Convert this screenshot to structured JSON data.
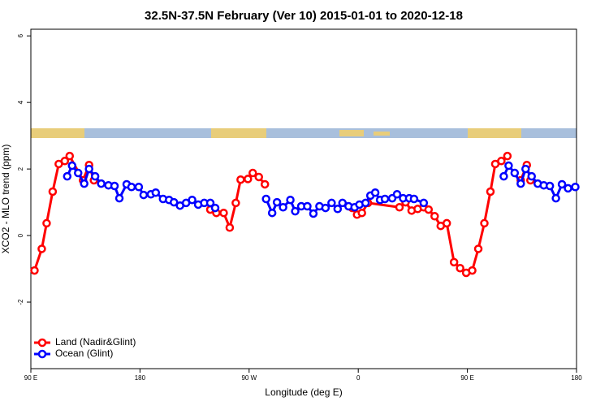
{
  "chart_data": {
    "type": "line",
    "title": "32.5N-37.5N February (Ver 10)   2015-01-01 to 2020-12-18",
    "x_label": "Longitude (deg E)",
    "y_label": "XCO2 - MLO trend (ppm)",
    "xlim": [
      90,
      540
    ],
    "xticks": [
      {
        "value": 90,
        "label": "90 E"
      },
      180,
      {
        "value": 270,
        "label": "90 W"
      },
      {
        "value": 360,
        "label": "0"
      },
      {
        "value": 450,
        "label": "90 E"
      },
      {
        "value": 540,
        "label": "180"
      }
    ],
    "ylim": [
      -4,
      6.2
    ],
    "yticks": [
      -2,
      0,
      2,
      4,
      6
    ],
    "legend": "bottom-left",
    "series": [
      {
        "name": "Land (Nadir&Glint)",
        "color": "#ff0000",
        "x": [
          93,
          99,
          103,
          108,
          113,
          118,
          122,
          133,
          138,
          142,
          null,
          238,
          243,
          249,
          254,
          259,
          263,
          269,
          273,
          278,
          283,
          null,
          355,
          359,
          363,
          368,
          394,
          399,
          404,
          409,
          414,
          418,
          423,
          428,
          433,
          439,
          444,
          449,
          454,
          459,
          464,
          469,
          473,
          478,
          483,
          null,
          494,
          499,
          502
        ],
        "values": [
          -1.05,
          -0.4,
          0.37,
          1.32,
          2.15,
          2.24,
          2.39,
          1.66,
          2.12,
          1.66,
          null,
          0.78,
          0.68,
          0.68,
          0.24,
          0.98,
          1.68,
          1.7,
          1.88,
          1.76,
          1.54,
          null,
          0.83,
          0.63,
          0.68,
          0.98,
          0.85,
          1.0,
          0.75,
          0.8,
          0.85,
          0.78,
          0.58,
          0.29,
          0.37,
          -0.8,
          -0.98,
          -1.12,
          -1.05,
          -0.4,
          0.37,
          1.32,
          2.15,
          2.24,
          2.39,
          null,
          1.66,
          2.12,
          1.66
        ]
      },
      {
        "name": "Ocean (Glint)",
        "color": "#0000ff",
        "x": [
          120,
          124,
          129,
          134,
          138,
          143,
          148,
          154,
          159,
          163,
          169,
          173,
          179,
          183,
          189,
          193,
          199,
          204,
          208,
          213,
          218,
          223,
          228,
          233,
          238,
          242,
          null,
          284,
          289,
          293,
          298,
          304,
          308,
          313,
          318,
          323,
          328,
          333,
          338,
          343,
          347,
          352,
          357,
          361,
          366,
          370,
          374,
          378,
          382,
          388,
          392,
          397,
          402,
          406,
          414,
          null,
          480,
          484,
          489,
          494,
          498,
          503,
          508,
          513,
          518,
          523,
          528,
          533,
          539
        ],
        "values": [
          1.78,
          2.1,
          1.88,
          1.56,
          2.0,
          1.78,
          1.56,
          1.51,
          1.49,
          1.12,
          1.54,
          1.46,
          1.46,
          1.22,
          1.24,
          1.29,
          1.1,
          1.07,
          1.0,
          0.9,
          0.98,
          1.07,
          0.93,
          0.98,
          0.98,
          0.83,
          null,
          1.1,
          0.68,
          1.0,
          0.85,
          1.07,
          0.73,
          0.88,
          0.88,
          0.66,
          0.88,
          0.83,
          0.98,
          0.8,
          0.98,
          0.88,
          0.85,
          0.93,
          0.98,
          1.2,
          1.29,
          1.07,
          1.1,
          1.12,
          1.24,
          1.12,
          1.12,
          1.1,
          0.98,
          null,
          1.78,
          2.1,
          1.88,
          1.56,
          2.0,
          1.78,
          1.56,
          1.51,
          1.49,
          1.12,
          1.54,
          1.42,
          1.46
        ]
      }
    ]
  }
}
